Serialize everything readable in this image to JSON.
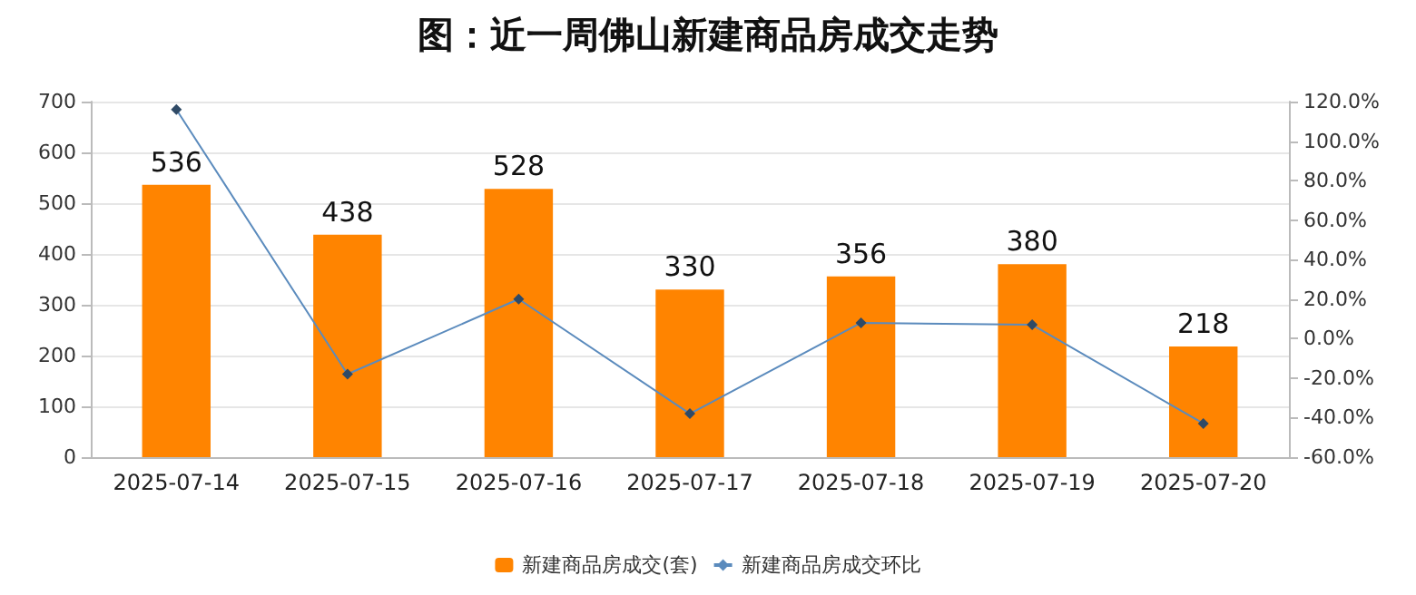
{
  "chart_data": {
    "type": "bar",
    "title": "图：近一周佛山新建商品房成交走势",
    "categories": [
      "2025-07-14",
      "2025-07-15",
      "2025-07-16",
      "2025-07-17",
      "2025-07-18",
      "2025-07-19",
      "2025-07-20"
    ],
    "series": [
      {
        "name": "新建商品房成交(套)",
        "color": "#ff8400",
        "values": [
          536,
          438,
          528,
          330,
          356,
          380,
          218
        ],
        "value_labels": [
          "536",
          "438",
          "528",
          "330",
          "356",
          "380",
          "218"
        ]
      },
      {
        "name": "新建商品房成交环比",
        "type": "line",
        "axis": "y2",
        "color": "#5b8bbd",
        "marker": "diamond",
        "values": [
          116,
          -18,
          20,
          -38,
          8,
          7,
          -43
        ]
      }
    ],
    "ylim": [
      0,
      700
    ],
    "yticks": [
      0,
      100,
      200,
      300,
      400,
      500,
      600,
      700
    ],
    "y2lim": [
      -60,
      120
    ],
    "y2ticks": [
      {
        "value": -60,
        "label": "-60.0%"
      },
      {
        "value": -40,
        "label": "-40.0%"
      },
      {
        "value": -20,
        "label": "-20.0%"
      },
      {
        "value": 0,
        "label": "0.0%"
      },
      {
        "value": 20,
        "label": "20.0%"
      },
      {
        "value": 40,
        "label": "40.0%"
      },
      {
        "value": 60,
        "label": "60.0%"
      },
      {
        "value": 80,
        "label": "80.0%"
      },
      {
        "value": 100,
        "label": "100.0%"
      },
      {
        "value": 120,
        "label": "120.0%"
      }
    ],
    "grid": "y",
    "legend": "bottom"
  }
}
